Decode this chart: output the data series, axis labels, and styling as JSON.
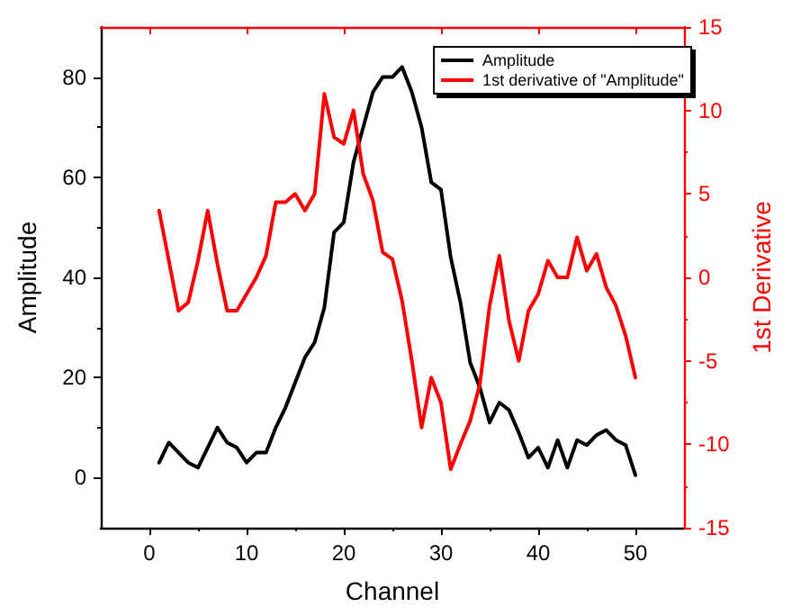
{
  "chart_data": {
    "type": "line",
    "xlabel": "Channel",
    "ylabel": "Amplitude",
    "y2label": "1st Derivative",
    "xlim": [
      -5,
      55
    ],
    "xticks": [
      0,
      10,
      20,
      30,
      40,
      50
    ],
    "ylim": [
      -10,
      90
    ],
    "yticks": [
      0,
      20,
      40,
      60,
      80
    ],
    "y2lim": [
      -15,
      15
    ],
    "y2ticks": [
      -15,
      -10,
      -5,
      0,
      5,
      10,
      15
    ],
    "x": [
      1,
      2,
      3,
      4,
      5,
      6,
      7,
      8,
      9,
      10,
      11,
      12,
      13,
      14,
      15,
      16,
      17,
      18,
      19,
      20,
      21,
      22,
      23,
      24,
      25,
      26,
      27,
      28,
      29,
      30,
      31,
      32,
      33,
      34,
      35,
      36,
      37,
      38,
      39,
      40,
      41,
      42,
      43,
      44,
      45,
      46,
      47,
      48,
      49,
      50
    ],
    "grid": false,
    "legend": "top right",
    "marker": "none",
    "line_style": "solid",
    "series": [
      {
        "name": "Amplitude",
        "color": "#000000",
        "values": [
          3,
          7,
          5,
          3,
          2,
          6,
          10,
          7,
          6,
          3,
          5,
          5,
          10,
          14,
          19,
          24,
          27,
          34,
          49,
          51,
          63,
          70,
          77,
          80,
          80,
          82,
          77,
          70,
          59,
          57.5,
          44,
          35,
          23,
          18,
          11,
          15,
          13.5,
          9,
          4,
          6,
          2,
          7.5,
          2,
          7.5,
          6.5,
          8.5,
          9.5,
          7.5,
          6.5,
          0.5
        ]
      },
      {
        "name": "1st derivative of \"Amplitude\"",
        "color": "#ff0000",
        "axis": "y2",
        "values": [
          4,
          1,
          -2,
          -1.5,
          1,
          4,
          0.8,
          -2,
          -2,
          -1,
          0,
          1.3,
          4.5,
          4.5,
          5,
          4,
          5,
          11,
          8.4,
          8,
          10,
          6.2,
          4.6,
          1.5,
          1.1,
          -1.4,
          -5,
          -9,
          -6,
          -7.5,
          -11.5,
          -10,
          -8.6,
          -6.4,
          -1.7,
          1.3,
          -2.6,
          -5,
          -2,
          -1,
          1,
          0,
          0,
          2.4,
          0.4,
          1.4,
          -0.6,
          -1.7,
          -3.5,
          -6
        ]
      }
    ]
  }
}
